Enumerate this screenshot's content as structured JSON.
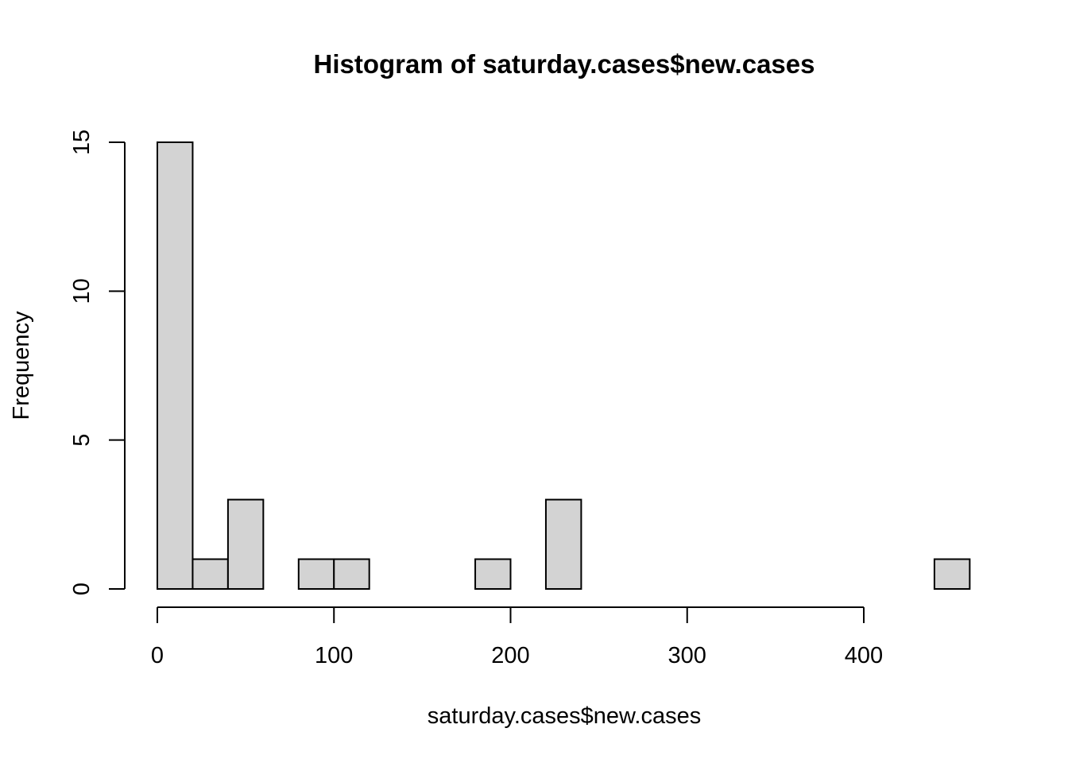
{
  "chart_data": {
    "type": "bar",
    "title": "Histogram of saturday.cases$new.cases",
    "xlabel": "saturday.cases$new.cases",
    "ylabel": "Frequency",
    "bin_width": 20,
    "bins": [
      {
        "start": 0,
        "end": 20,
        "count": 15
      },
      {
        "start": 20,
        "end": 40,
        "count": 1
      },
      {
        "start": 40,
        "end": 60,
        "count": 3
      },
      {
        "start": 60,
        "end": 80,
        "count": 0
      },
      {
        "start": 80,
        "end": 100,
        "count": 1
      },
      {
        "start": 100,
        "end": 120,
        "count": 1
      },
      {
        "start": 120,
        "end": 140,
        "count": 0
      },
      {
        "start": 140,
        "end": 160,
        "count": 0
      },
      {
        "start": 160,
        "end": 180,
        "count": 0
      },
      {
        "start": 180,
        "end": 200,
        "count": 1
      },
      {
        "start": 200,
        "end": 220,
        "count": 0
      },
      {
        "start": 220,
        "end": 240,
        "count": 3
      },
      {
        "start": 240,
        "end": 260,
        "count": 0
      },
      {
        "start": 260,
        "end": 280,
        "count": 0
      },
      {
        "start": 280,
        "end": 300,
        "count": 0
      },
      {
        "start": 300,
        "end": 320,
        "count": 0
      },
      {
        "start": 320,
        "end": 340,
        "count": 0
      },
      {
        "start": 340,
        "end": 360,
        "count": 0
      },
      {
        "start": 360,
        "end": 380,
        "count": 0
      },
      {
        "start": 380,
        "end": 400,
        "count": 0
      },
      {
        "start": 400,
        "end": 420,
        "count": 0
      },
      {
        "start": 420,
        "end": 440,
        "count": 0
      },
      {
        "start": 440,
        "end": 460,
        "count": 1
      }
    ],
    "xticks": [
      0,
      100,
      200,
      300,
      400
    ],
    "yticks": [
      0,
      5,
      10,
      15
    ],
    "xlim": [
      0,
      460
    ],
    "ylim": [
      0,
      15
    ],
    "bar_fill": "#d3d3d3",
    "bar_stroke": "#000000",
    "grid": false,
    "legend": "none"
  }
}
